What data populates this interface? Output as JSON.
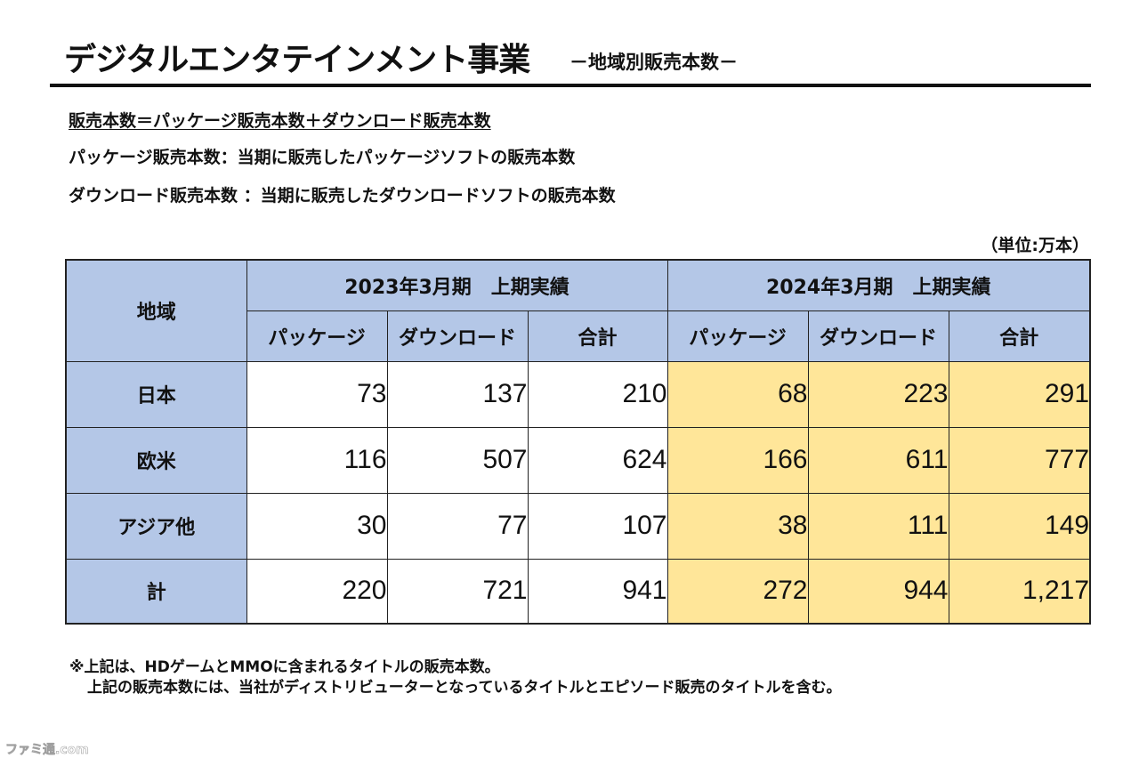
{
  "header": {
    "title": "デジタルエンタテインメント事業",
    "subtitle": "－地域別販売本数－"
  },
  "definitions": [
    "販売本数＝パッケージ販売本数＋ダウンロード販売本数",
    "パッケージ販売本数：当期に販売したパッケージソフトの販売本数",
    "ダウンロード販売本数 ：当期に販売したダウンロードソフトの販売本数"
  ],
  "unit_note": "（単位:万本）",
  "table": {
    "region_header": "地域",
    "period_prev": "2023年3月期　上期実績",
    "period_curr": "2024年3月期　上期実績",
    "columns": [
      "パッケージ",
      "ダウンロード",
      "合計",
      "パッケージ",
      "ダウンロード",
      "合計"
    ],
    "rows": [
      {
        "label": "日本",
        "values": [
          "73",
          "137",
          "210",
          "68",
          "223",
          "291"
        ]
      },
      {
        "label": "欧米",
        "values": [
          "116",
          "507",
          "624",
          "166",
          "611",
          "777"
        ]
      },
      {
        "label": "アジア他",
        "values": [
          "30",
          "77",
          "107",
          "38",
          "111",
          "149"
        ]
      },
      {
        "label": "計",
        "values": [
          "220",
          "721",
          "941",
          "272",
          "944",
          "1,217"
        ]
      }
    ],
    "colors": {
      "header_bg": "#b4c7e7",
      "highlight_bg": "#ffe699"
    }
  },
  "notes": [
    "※上記は、HDゲームとMMOに含まれるタイトルの販売本数。",
    "上記の販売本数には、当社がディストリビューターとなっているタイトルとエピソード販売のタイトルを含む。"
  ],
  "watermark": "ファミ通.com"
}
